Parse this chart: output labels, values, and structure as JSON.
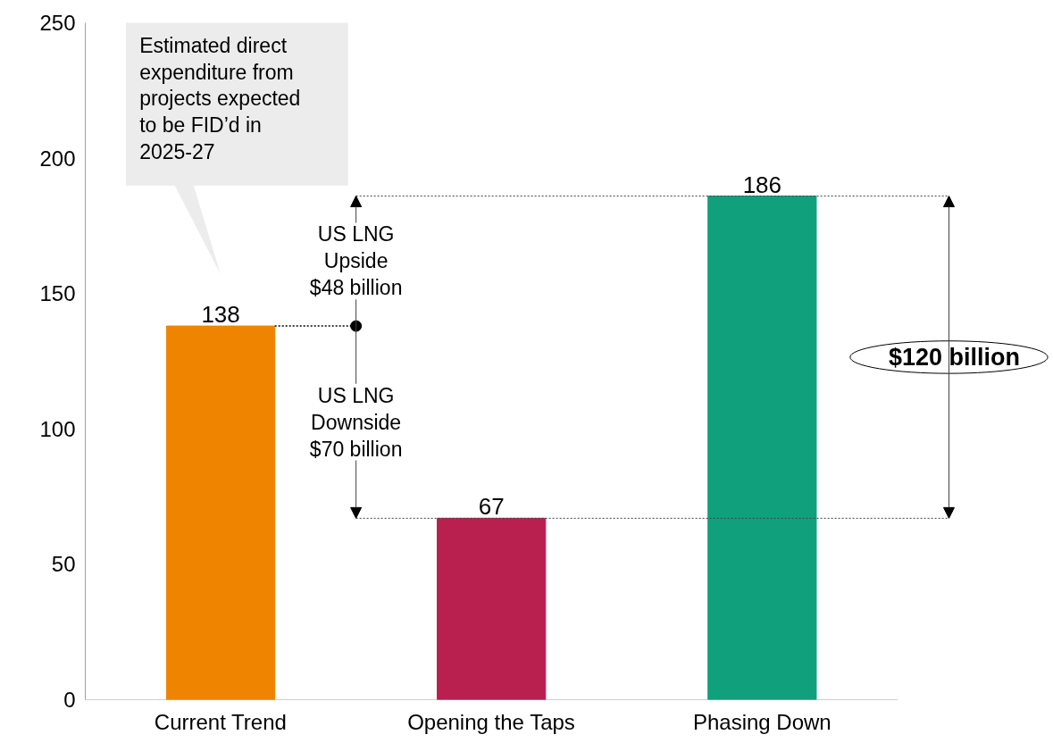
{
  "chart_data": {
    "type": "bar",
    "categories": [
      "Current Trend",
      "Opening the Taps",
      "Phasing Down"
    ],
    "values": [
      138,
      67,
      186
    ],
    "colors": [
      "#ee8400",
      "#b91f4f",
      "#11a07c"
    ],
    "ylim": [
      0,
      250
    ],
    "yticks": [
      0,
      50,
      100,
      150,
      200,
      250
    ],
    "grid": false,
    "data_labels": true,
    "annotations": [
      "Estimated direct\nexpenditure from\nprojects expected\nto be FID’d in\n2025-27",
      "US LNG\nUpside\n$48 billion",
      "US LNG\nDownside\n$70 billion",
      "$120 billion"
    ]
  }
}
